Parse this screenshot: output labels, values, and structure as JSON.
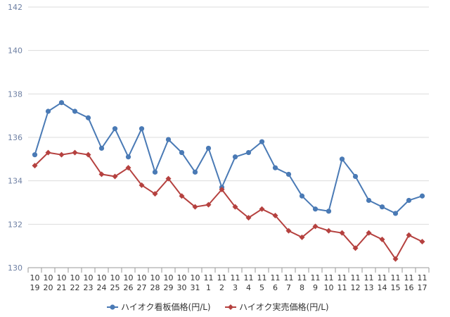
{
  "chart_data": {
    "type": "line",
    "categories": [
      [
        "10",
        "19"
      ],
      [
        "10",
        "20"
      ],
      [
        "10",
        "21"
      ],
      [
        "10",
        "22"
      ],
      [
        "10",
        "23"
      ],
      [
        "10",
        "24"
      ],
      [
        "10",
        "25"
      ],
      [
        "10",
        "26"
      ],
      [
        "10",
        "27"
      ],
      [
        "10",
        "28"
      ],
      [
        "10",
        "29"
      ],
      [
        "10",
        "30"
      ],
      [
        "10",
        "31"
      ],
      [
        "11",
        "1"
      ],
      [
        "11",
        "2"
      ],
      [
        "11",
        "3"
      ],
      [
        "11",
        "4"
      ],
      [
        "11",
        "5"
      ],
      [
        "11",
        "6"
      ],
      [
        "11",
        "7"
      ],
      [
        "11",
        "8"
      ],
      [
        "11",
        "9"
      ],
      [
        "11",
        "10"
      ],
      [
        "11",
        "11"
      ],
      [
        "11",
        "12"
      ],
      [
        "11",
        "13"
      ],
      [
        "11",
        "14"
      ],
      [
        "11",
        "15"
      ],
      [
        "11",
        "16"
      ],
      [
        "11",
        "17"
      ]
    ],
    "series": [
      {
        "name": "ハイオク看板価格(円/L)",
        "color": "#4a7ab5",
        "marker": "circle",
        "values": [
          135.2,
          137.2,
          137.6,
          137.2,
          136.9,
          135.5,
          136.4,
          135.1,
          136.4,
          134.4,
          135.9,
          135.3,
          134.4,
          135.5,
          133.7,
          135.1,
          135.3,
          135.8,
          134.6,
          134.3,
          133.3,
          132.7,
          132.6,
          135.0,
          134.2,
          133.1,
          132.8,
          132.5,
          133.1,
          133.3
        ]
      },
      {
        "name": "ハイオク実売価格(円/L)",
        "color": "#b5413f",
        "marker": "diamond",
        "values": [
          134.7,
          135.3,
          135.2,
          135.3,
          135.2,
          134.3,
          134.2,
          134.6,
          133.8,
          133.4,
          134.1,
          133.3,
          132.8,
          132.9,
          133.6,
          132.8,
          132.3,
          132.7,
          132.4,
          131.7,
          131.4,
          131.9,
          131.7,
          131.6,
          130.9,
          131.6,
          131.3,
          130.4,
          131.5,
          131.2
        ]
      }
    ],
    "yticks": [
      "142",
      "140",
      "138",
      "136",
      "134",
      "132",
      "130"
    ],
    "ylim": [
      130,
      142
    ],
    "grid": true,
    "legend": "bottom"
  }
}
